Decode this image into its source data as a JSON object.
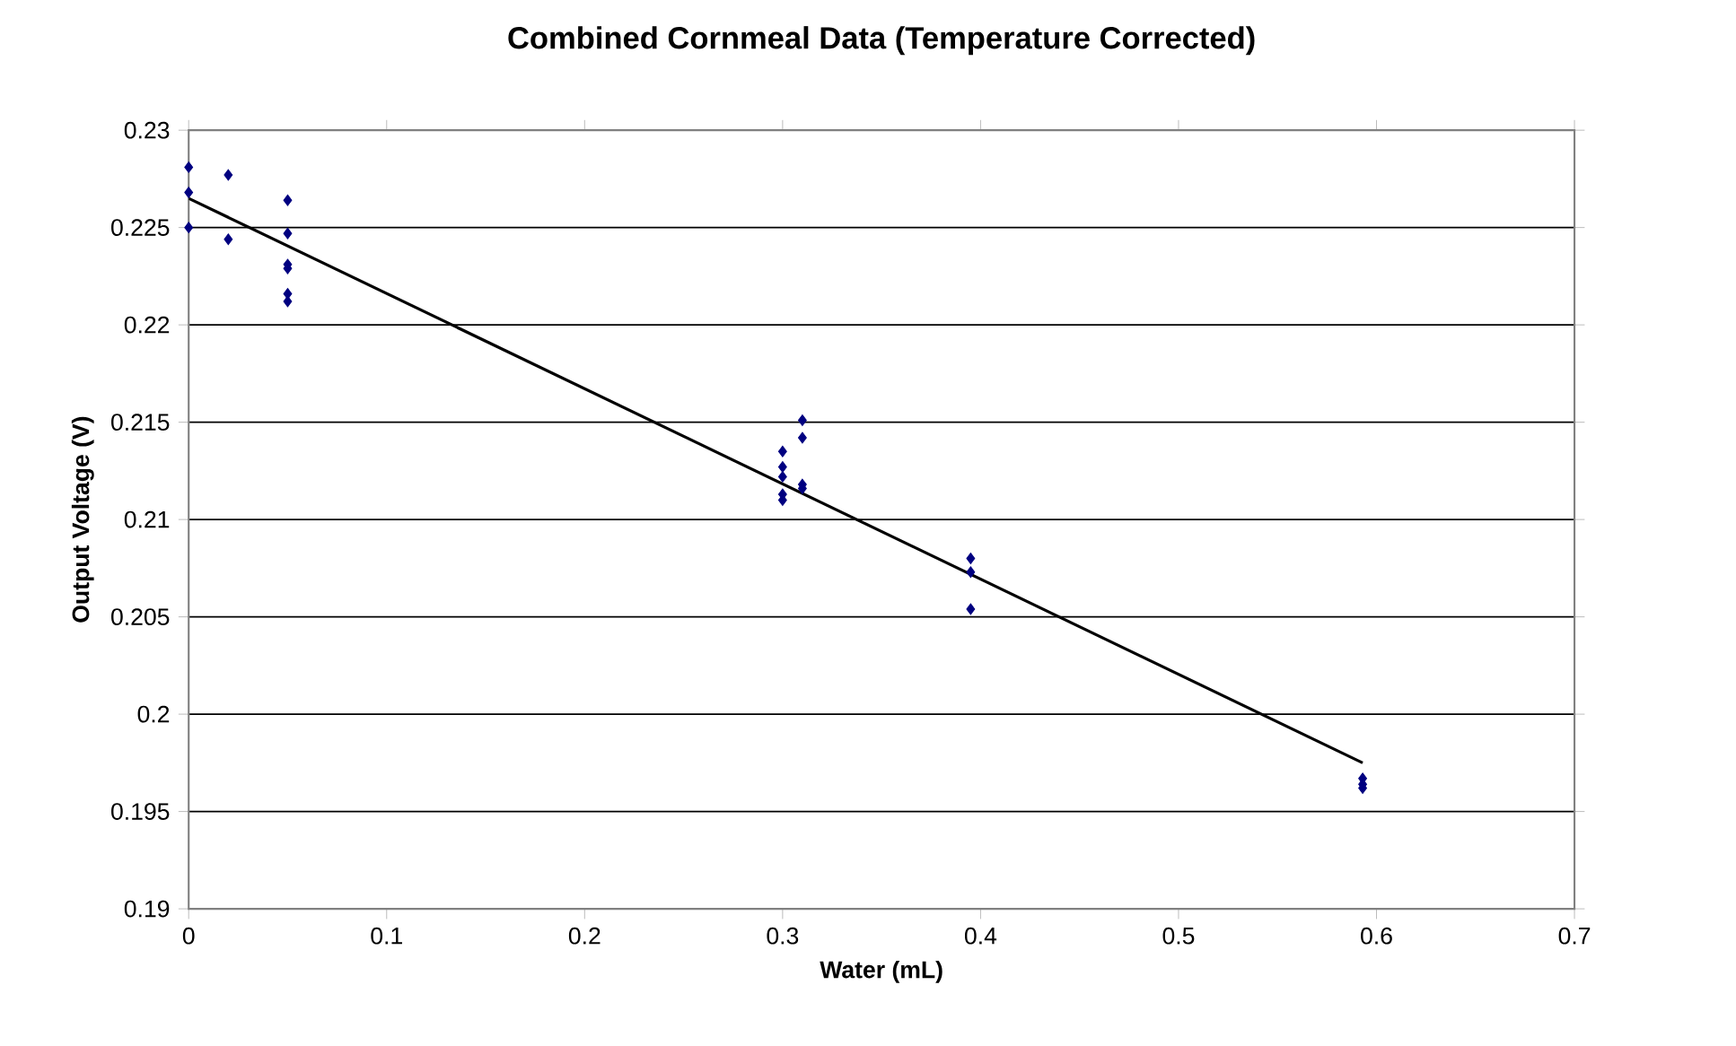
{
  "chart_data": {
    "type": "scatter",
    "title": "Combined Cornmeal Data (Temperature Corrected)",
    "xlabel": "Water (mL)",
    "ylabel": "Output Voltage (V)",
    "xlim": [
      0,
      0.7
    ],
    "xticks": [
      0,
      0.1,
      0.2,
      0.3,
      0.4,
      0.5,
      0.6,
      0.7
    ],
    "ylim": [
      0.19,
      0.23
    ],
    "yticks": [
      0.19,
      0.195,
      0.2,
      0.205,
      0.21,
      0.215,
      0.22,
      0.225,
      0.23
    ],
    "grid": "y",
    "series": [
      {
        "color": "#000080",
        "marker": "diamond",
        "x": [
          0,
          0,
          0,
          0.02,
          0.02,
          0.05,
          0.05,
          0.05,
          0.05,
          0.05,
          0.05,
          0.3,
          0.3,
          0.3,
          0.3,
          0.3,
          0.31,
          0.31,
          0.31,
          0.31,
          0.395,
          0.395,
          0.395,
          0.593,
          0.593,
          0.593
        ],
        "values": [
          0.2281,
          0.2268,
          0.225,
          0.2277,
          0.2244,
          0.2264,
          0.2247,
          0.2231,
          0.2229,
          0.2216,
          0.2212,
          0.2135,
          0.2127,
          0.2122,
          0.2113,
          0.211,
          0.2151,
          0.2142,
          0.2118,
          0.2116,
          0.208,
          0.2073,
          0.2054,
          0.1967,
          0.1964,
          0.1962
        ]
      },
      {
        "type": "line",
        "color": "#000000",
        "marker": "none",
        "line_style": "solid",
        "x": [
          0,
          0.593
        ],
        "values": [
          0.2265,
          0.1975
        ]
      }
    ]
  }
}
